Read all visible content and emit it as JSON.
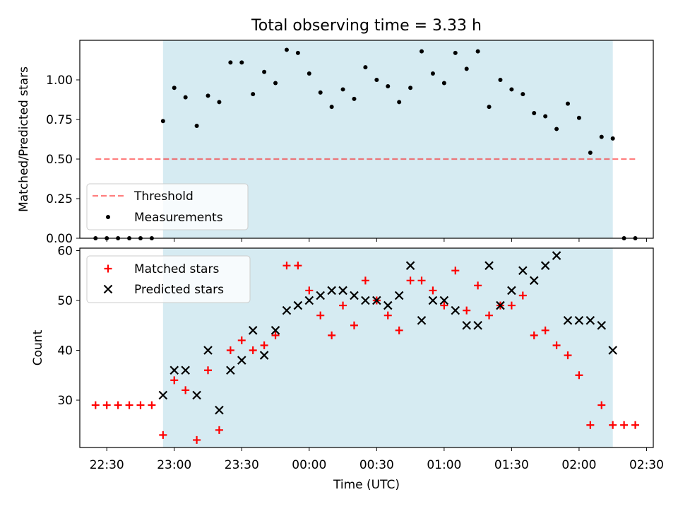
{
  "title": "Total observing time = 3.33 h",
  "colors": {
    "observing_band": "#add8e6",
    "threshold": "#ff0000",
    "measurements": "#000000",
    "matched": "#ff0000",
    "predicted": "#000000"
  },
  "chart_data": [
    {
      "type": "scatter",
      "panel": "top",
      "title": "Total observing time = 3.33 h",
      "xlabel": "",
      "ylabel": "Matched/Predicted stars",
      "xlim": [
        "22:18",
        "02:33"
      ],
      "ylim": [
        0,
        1.25
      ],
      "yticks": [
        "0.00",
        "0.25",
        "0.50",
        "0.75",
        "1.00"
      ],
      "observing_window": [
        "22:55",
        "02:15"
      ],
      "legend": [
        "Threshold",
        "Measurements"
      ],
      "legend_position": "lower-left",
      "threshold": {
        "name": "Threshold",
        "y": 0.5,
        "x": [
          "22:25",
          "02:25"
        ],
        "style": "dashed"
      },
      "series": [
        {
          "name": "Measurements",
          "marker": "dot",
          "x": [
            "22:25",
            "22:30",
            "22:35",
            "22:40",
            "22:45",
            "22:50",
            "22:55",
            "23:00",
            "23:05",
            "23:10",
            "23:15",
            "23:20",
            "23:25",
            "23:30",
            "23:35",
            "23:40",
            "23:45",
            "23:50",
            "23:55",
            "00:00",
            "00:05",
            "00:10",
            "00:15",
            "00:20",
            "00:25",
            "00:30",
            "00:35",
            "00:40",
            "00:45",
            "00:50",
            "00:55",
            "01:00",
            "01:05",
            "01:10",
            "01:15",
            "01:20",
            "01:25",
            "01:30",
            "01:35",
            "01:40",
            "01:45",
            "01:50",
            "01:55",
            "02:00",
            "02:05",
            "02:10",
            "02:15",
            "02:20",
            "02:25"
          ],
          "y": [
            0.0,
            0.0,
            0.0,
            0.0,
            0.0,
            0.0,
            0.74,
            0.95,
            0.89,
            0.71,
            0.9,
            0.86,
            1.11,
            1.11,
            0.91,
            1.05,
            0.98,
            1.19,
            1.17,
            1.04,
            0.92,
            0.83,
            0.94,
            0.88,
            1.08,
            1.0,
            0.96,
            0.86,
            0.95,
            1.18,
            1.04,
            0.98,
            1.17,
            1.07,
            1.18,
            0.83,
            1.0,
            0.94,
            0.91,
            0.79,
            0.77,
            0.69,
            0.85,
            0.76,
            0.54,
            0.64,
            0.63,
            0.0,
            0.0
          ]
        }
      ]
    },
    {
      "type": "scatter",
      "panel": "bottom",
      "xlabel": "Time (UTC)",
      "ylabel": "Count",
      "xlim": [
        "22:18",
        "02:33"
      ],
      "ylim": [
        20.5,
        60.5
      ],
      "xticks": [
        "22:30",
        "23:00",
        "23:30",
        "00:00",
        "00:30",
        "01:00",
        "01:30",
        "02:00",
        "02:30"
      ],
      "yticks": [
        "30",
        "40",
        "50",
        "60"
      ],
      "observing_window": [
        "22:55",
        "02:15"
      ],
      "legend": [
        "Matched stars",
        "Predicted stars"
      ],
      "legend_position": "top-left",
      "series": [
        {
          "name": "Matched stars",
          "marker": "plus",
          "x": [
            "22:25",
            "22:30",
            "22:35",
            "22:40",
            "22:45",
            "22:50",
            "22:55",
            "23:00",
            "23:05",
            "23:10",
            "23:15",
            "23:20",
            "23:25",
            "23:30",
            "23:35",
            "23:40",
            "23:45",
            "23:50",
            "23:55",
            "00:00",
            "00:05",
            "00:10",
            "00:15",
            "00:20",
            "00:25",
            "00:30",
            "00:35",
            "00:40",
            "00:45",
            "00:50",
            "00:55",
            "01:00",
            "01:05",
            "01:10",
            "01:15",
            "01:20",
            "01:25",
            "01:30",
            "01:35",
            "01:40",
            "01:45",
            "01:50",
            "01:55",
            "02:00",
            "02:05",
            "02:10",
            "02:15",
            "02:20",
            "02:25"
          ],
          "y": [
            29,
            29,
            29,
            29,
            29,
            29,
            23,
            34,
            32,
            22,
            36,
            24,
            40,
            42,
            40,
            41,
            43,
            57,
            57,
            52,
            47,
            43,
            49,
            45,
            54,
            50,
            47,
            44,
            54,
            54,
            52,
            49,
            56,
            48,
            53,
            47,
            49,
            49,
            51,
            43,
            44,
            41,
            39,
            35,
            25,
            29,
            25,
            25,
            25
          ]
        },
        {
          "name": "Predicted stars",
          "marker": "x",
          "x": [
            "22:55",
            "23:00",
            "23:05",
            "23:10",
            "23:15",
            "23:20",
            "23:25",
            "23:30",
            "23:35",
            "23:40",
            "23:45",
            "23:50",
            "23:55",
            "00:00",
            "00:05",
            "00:10",
            "00:15",
            "00:20",
            "00:25",
            "00:30",
            "00:35",
            "00:40",
            "00:45",
            "00:50",
            "00:55",
            "01:00",
            "01:05",
            "01:10",
            "01:15",
            "01:20",
            "01:25",
            "01:30",
            "01:35",
            "01:40",
            "01:45",
            "01:50",
            "01:55",
            "02:00",
            "02:05",
            "02:10",
            "02:15"
          ],
          "y": [
            31,
            36,
            36,
            31,
            40,
            28,
            36,
            38,
            44,
            39,
            44,
            48,
            49,
            50,
            51,
            52,
            52,
            51,
            50,
            50,
            49,
            51,
            57,
            46,
            50,
            50,
            48,
            45,
            45,
            57,
            49,
            52,
            56,
            54,
            57,
            59,
            46,
            46,
            46,
            45,
            40
          ]
        }
      ]
    }
  ]
}
